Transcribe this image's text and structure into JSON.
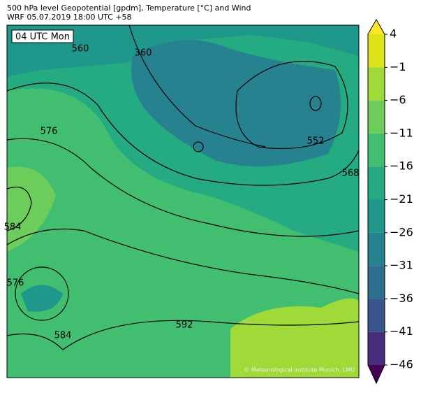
{
  "header": {
    "title": "500 hPa level Geopotential [gpdm], Temperature [°C] and Wind",
    "subtitle": "WRF 05.07.2019 18:00 UTC +58"
  },
  "map": {
    "time_label": "04 UTC Mon",
    "credit": "© Meteorological Institute Munich, LMU",
    "contour_labels": [
      "560",
      "360",
      "576",
      "584",
      "576",
      "584",
      "592",
      "552",
      "568"
    ]
  },
  "colorbar": {
    "ticks": [
      4,
      {
        "value": -1,
        "label": "−1"
      },
      {
        "value": -6,
        "label": "−6"
      },
      {
        "value": -11,
        "label": "−11"
      },
      {
        "value": -16,
        "label": "−16"
      },
      {
        "value": -21,
        "label": "−21"
      },
      {
        "value": -26,
        "label": "−26"
      },
      {
        "value": -31,
        "label": "−31"
      },
      {
        "value": -36,
        "label": "−36"
      },
      {
        "value": -41,
        "label": "−41"
      },
      {
        "value": -46,
        "label": "−46"
      }
    ],
    "colors": [
      "#dde318",
      "#a0da39",
      "#6ccd5a",
      "#42be71",
      "#25ab82",
      "#1f978b",
      "#26828e",
      "#2e6e8e",
      "#39568c",
      "#472d7b"
    ],
    "over_color": "#fde725",
    "under_color": "#440154"
  }
}
